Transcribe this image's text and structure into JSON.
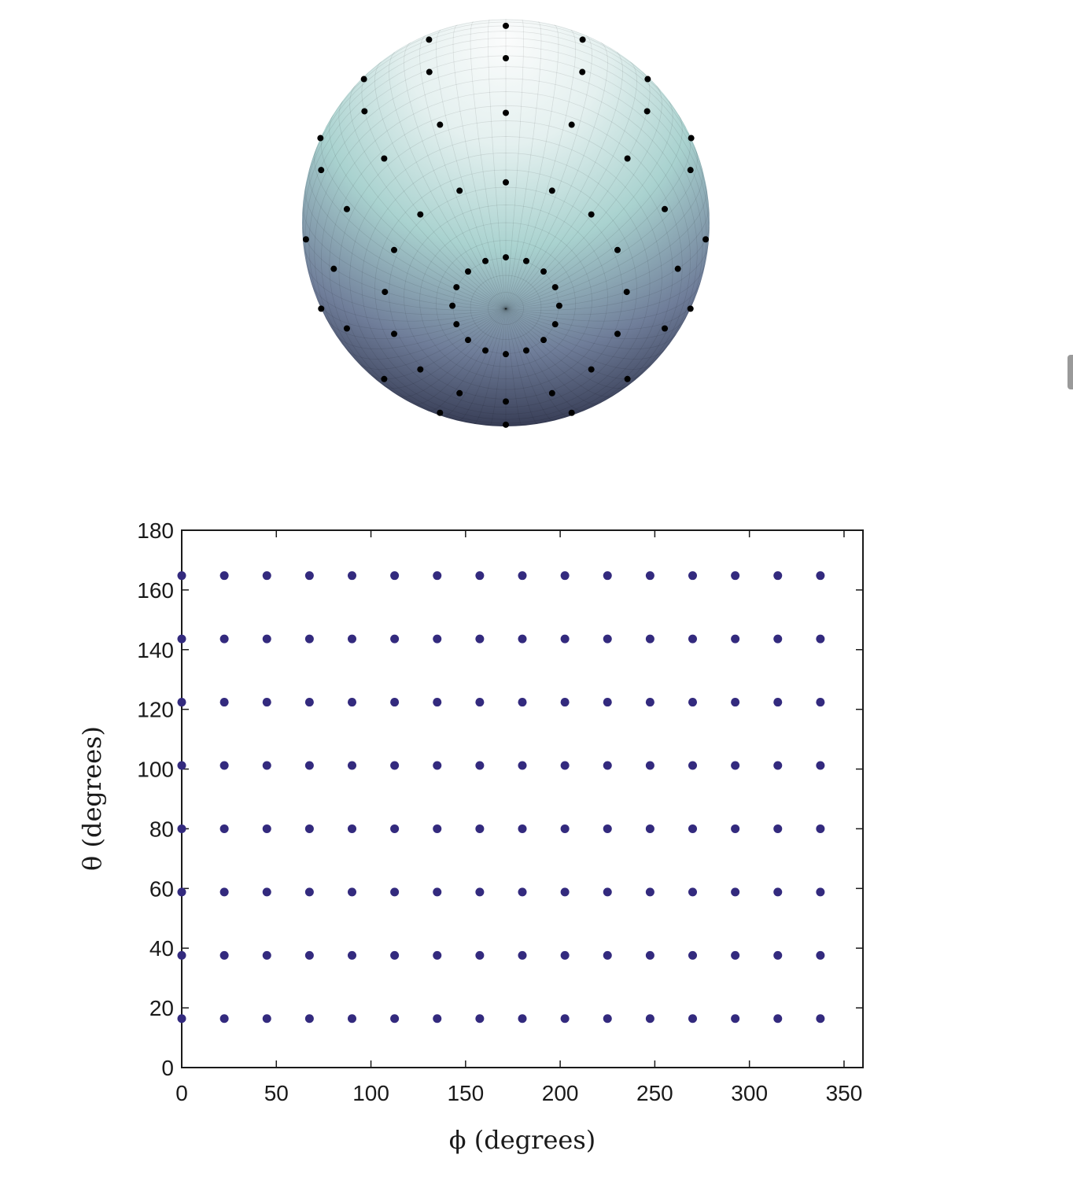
{
  "chart_data": [
    {
      "type": "scatter",
      "title": "",
      "note": "3D sphere rendering with sample points marked at the scatter grid directions",
      "colors": {
        "point": "#000000",
        "sphere_top": "#f7fafa",
        "sphere_mid": "#a9d2cf",
        "sphere_bottom": "#1f2138"
      }
    },
    {
      "type": "scatter",
      "title": "",
      "xlabel": "ϕ (degrees)",
      "ylabel": "θ (degrees)",
      "xlim": [
        0,
        360
      ],
      "ylim": [
        0,
        180
      ],
      "xticks": [
        "0",
        "50",
        "100",
        "150",
        "200",
        "250",
        "300",
        "350"
      ],
      "yticks": [
        "0",
        "20",
        "40",
        "60",
        "80",
        "100",
        "120",
        "140",
        "160",
        "180"
      ],
      "phi_values": [
        0,
        22.5,
        45,
        67.5,
        90,
        112.5,
        135,
        157.5,
        180,
        202.5,
        225,
        247.5,
        270,
        292.5,
        315,
        337.5
      ],
      "theta_values": [
        16.4,
        37.6,
        58.8,
        80,
        101.2,
        122.4,
        143.6,
        164.8
      ],
      "grid": false,
      "colors": {
        "point": "#332a7e",
        "axis": "#1a1a1a"
      }
    }
  ]
}
